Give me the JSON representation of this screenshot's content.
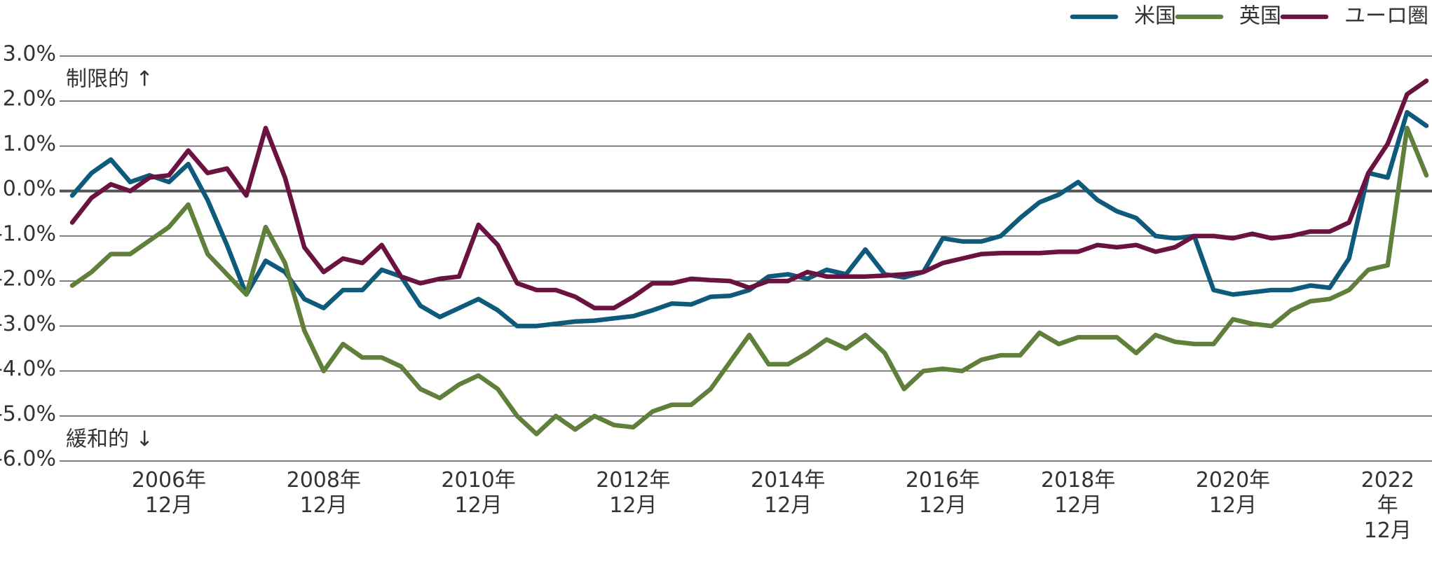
{
  "chart_data": {
    "type": "line",
    "annotations": [
      "制限的 ↑",
      "緩和的 ↓"
    ],
    "categories": [
      null,
      null,
      null,
      null,
      null,
      "2006年\n12月",
      null,
      null,
      null,
      null,
      null,
      null,
      null,
      "2008年\n12月",
      null,
      null,
      null,
      null,
      null,
      null,
      null,
      "2010年\n12月",
      null,
      null,
      null,
      null,
      null,
      null,
      null,
      "2012年\n12月",
      null,
      null,
      null,
      null,
      null,
      null,
      null,
      "2014年\n12月",
      null,
      null,
      null,
      null,
      null,
      null,
      null,
      "2016年\n12月",
      null,
      null,
      null,
      null,
      null,
      null,
      "2018年\n12月",
      null,
      null,
      null,
      null,
      null,
      null,
      null,
      "2020年\n12月",
      null,
      null,
      null,
      null,
      null,
      null,
      null,
      "2022年\n12月",
      null,
      null
    ],
    "series": [
      {
        "name": "米国",
        "color": "#0d5a7a",
        "values": [
          -0.1,
          0.4,
          0.7,
          0.2,
          0.35,
          0.2,
          0.6,
          -0.2,
          -1.2,
          -2.3,
          -1.55,
          -1.8,
          -2.4,
          -2.6,
          -2.2,
          -2.2,
          -1.75,
          -1.9,
          -2.55,
          -2.8,
          -2.6,
          -2.4,
          -2.65,
          -3.0,
          -3.0,
          -2.95,
          -2.9,
          -2.88,
          -2.83,
          -2.78,
          -2.65,
          -2.5,
          -2.52,
          -2.35,
          -2.33,
          -2.2,
          -1.9,
          -1.85,
          -1.95,
          -1.75,
          -1.85,
          -1.3,
          -1.85,
          -1.92,
          -1.8,
          -1.05,
          -1.12,
          -1.12,
          -1.0,
          -0.6,
          -0.25,
          -0.08,
          0.2,
          -0.2,
          -0.45,
          -0.6,
          -1.0,
          -1.05,
          -1.0,
          -2.2,
          -2.3,
          -2.25,
          -2.2,
          -2.2,
          -2.1,
          -2.15,
          -1.5,
          0.4,
          0.3,
          1.75,
          1.45
        ]
      },
      {
        "name": "英国",
        "color": "#5f7f3a",
        "values": [
          -2.1,
          -1.8,
          -1.4,
          -1.4,
          -1.1,
          -0.8,
          -0.3,
          -1.4,
          -1.85,
          -2.3,
          -0.8,
          -1.6,
          -3.1,
          -4.0,
          -3.4,
          -3.7,
          -3.7,
          -3.9,
          -4.4,
          -4.6,
          -4.3,
          -4.1,
          -4.4,
          -5.0,
          -5.4,
          -5.0,
          -5.3,
          -5.0,
          -5.2,
          -5.25,
          -4.9,
          -4.75,
          -4.75,
          -4.4,
          -3.8,
          -3.2,
          -3.85,
          -3.85,
          -3.6,
          -3.3,
          -3.5,
          -3.2,
          -3.6,
          -4.4,
          -4.0,
          -3.95,
          -4.0,
          -3.75,
          -3.65,
          -3.65,
          -3.15,
          -3.4,
          -3.25,
          -3.25,
          -3.25,
          -3.6,
          -3.2,
          -3.35,
          -3.4,
          -3.4,
          -2.85,
          -2.95,
          -3.0,
          -2.65,
          -2.45,
          -2.4,
          -2.2,
          -1.75,
          -1.65,
          1.4,
          0.35
        ]
      },
      {
        "name": "ユーロ圏",
        "color": "#6b1340",
        "values": [
          -0.7,
          -0.15,
          0.15,
          0.0,
          0.3,
          0.35,
          0.9,
          0.4,
          0.5,
          -0.1,
          1.4,
          0.3,
          -1.25,
          -1.8,
          -1.5,
          -1.6,
          -1.2,
          -1.9,
          -2.05,
          -1.95,
          -1.9,
          -0.75,
          -1.2,
          -2.05,
          -2.2,
          -2.2,
          -2.35,
          -2.6,
          -2.6,
          -2.35,
          -2.05,
          -2.05,
          -1.95,
          -1.98,
          -2.0,
          -2.15,
          -2.0,
          -2.0,
          -1.8,
          -1.9,
          -1.9,
          -1.9,
          -1.88,
          -1.85,
          -1.8,
          -1.6,
          -1.5,
          -1.4,
          -1.38,
          -1.38,
          -1.38,
          -1.35,
          -1.35,
          -1.2,
          -1.25,
          -1.2,
          -1.35,
          -1.25,
          -1.0,
          -1.0,
          -1.05,
          -0.95,
          -1.05,
          -1.0,
          -0.9,
          -0.9,
          -0.7,
          0.4,
          1.05,
          2.15,
          2.45
        ]
      }
    ],
    "ylim": [
      -6,
      3
    ],
    "yticks": [
      {
        "value": 3,
        "label": "3.0%"
      },
      {
        "value": 2,
        "label": "2.0%"
      },
      {
        "value": 1,
        "label": "1.0%"
      },
      {
        "value": 0,
        "label": "0.0%"
      },
      {
        "value": -1,
        "label": "-1.0%"
      },
      {
        "value": -2,
        "label": "-2.0%"
      },
      {
        "value": -3,
        "label": "-3.0%"
      },
      {
        "value": -4,
        "label": "-4.0%"
      },
      {
        "value": -5,
        "label": "-5.0%"
      },
      {
        "value": -6,
        "label": "-6.0%"
      }
    ],
    "grid": true,
    "legend": "top-right"
  }
}
